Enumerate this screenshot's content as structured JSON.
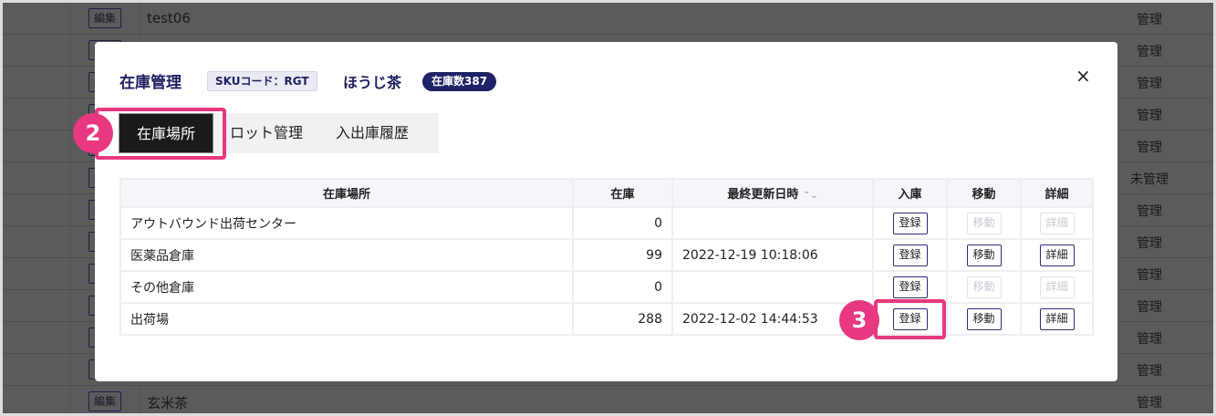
{
  "background": {
    "edit_label": "編集",
    "rows": [
      {
        "name": "test06",
        "status": "管理"
      },
      {
        "name": "",
        "status": "管理"
      },
      {
        "name": "",
        "status": "管理"
      },
      {
        "name": "",
        "status": "管理"
      },
      {
        "name": "",
        "status": "管理"
      },
      {
        "name": "",
        "status": "未管理"
      },
      {
        "name": "",
        "status": "管理"
      },
      {
        "name": "",
        "status": "管理"
      },
      {
        "name": "",
        "status": "管理"
      },
      {
        "name": "",
        "status": "管理"
      },
      {
        "name": "",
        "status": "管理"
      },
      {
        "name": "",
        "status": "管理"
      },
      {
        "name": "玄米茶",
        "status": "管理"
      }
    ]
  },
  "modal": {
    "title": "在庫管理",
    "sku": "SKUコード：RGT",
    "product": "ほうじ茶",
    "stock_badge": "在庫数387",
    "close": "×",
    "tabs": [
      {
        "label": "在庫場所",
        "active": true
      },
      {
        "label": "ロット管理"
      },
      {
        "label": "入出庫履歴"
      }
    ],
    "table": {
      "headers": [
        "在庫場所",
        "在庫",
        "最終更新日時",
        "入庫",
        "移動",
        "詳細"
      ],
      "sort_icon": "⌃⌄",
      "rows": [
        {
          "location": "アウトバウンド出荷センター",
          "stock": "0",
          "updated": "",
          "in": "登録",
          "move": "移動",
          "detail": "詳細",
          "enabled": false
        },
        {
          "location": "医薬品倉庫",
          "stock": "99",
          "updated": "2022-12-19 10:18:06",
          "in": "登録",
          "move": "移動",
          "detail": "詳細",
          "enabled": true
        },
        {
          "location": "その他倉庫",
          "stock": "0",
          "updated": "",
          "in": "登録",
          "move": "移動",
          "detail": "詳細",
          "enabled": false
        },
        {
          "location": "出荷場",
          "stock": "288",
          "updated": "2022-12-02 14:44:53",
          "in": "登録",
          "move": "移動",
          "detail": "詳細",
          "enabled": true
        }
      ]
    }
  },
  "annotations": {
    "step2": "2",
    "step3": "3",
    "color": "#e8387f"
  }
}
